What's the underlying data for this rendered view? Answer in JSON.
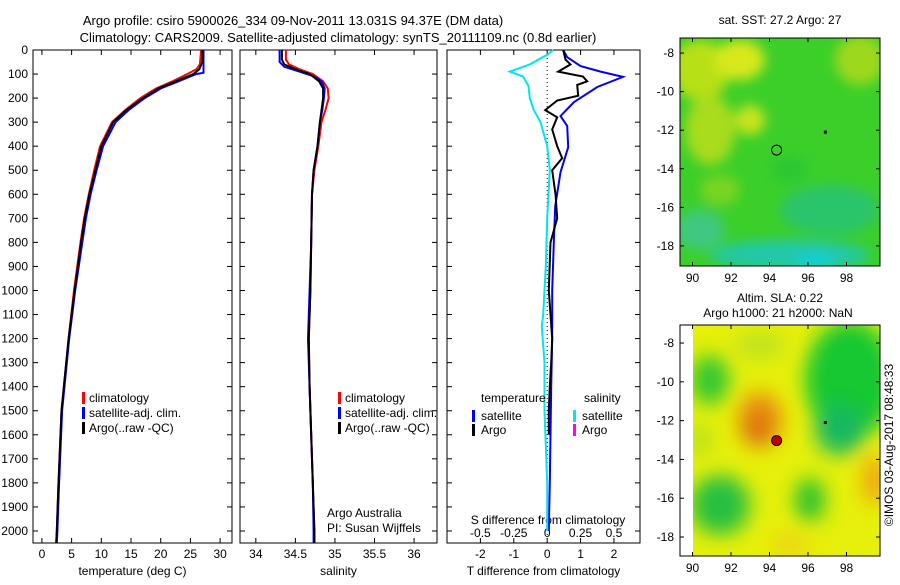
{
  "title": {
    "line1": "Argo profile: csiro 5900026_334 09-Nov-2011 13.031S 94.37E (DM data)",
    "line2": "Climatology: CARS2009. Satellite-adjusted climatology: synTS_20111109.nc (0.8d earlier)"
  },
  "colors": {
    "climatology": "#ff0000",
    "satellite": "#0000ff",
    "argo": "#000000",
    "sat_salinity": "#00e5ee",
    "argo_salinity": "#ff00ff"
  },
  "chart_data": [
    {
      "type": "line",
      "name": "temperature-profile",
      "xlabel": "temperature (deg C)",
      "ylabel": "",
      "xlim": [
        -1.5,
        32
      ],
      "ylim": [
        2050,
        0
      ],
      "xticks": [
        0,
        5,
        10,
        15,
        20,
        25,
        30
      ],
      "yticks": [
        0,
        100,
        200,
        300,
        400,
        500,
        600,
        700,
        800,
        900,
        1000,
        1100,
        1200,
        1300,
        1400,
        1500,
        1600,
        1700,
        1800,
        1900,
        2000
      ],
      "legend": [
        "climatology",
        "satellite-adj. clim.",
        "Argo(..raw -QC)"
      ],
      "series": [
        {
          "name": "climatology",
          "color": "#ff0000",
          "depth": [
            0,
            60,
            80,
            100,
            130,
            160,
            200,
            250,
            300,
            400,
            500,
            600,
            700,
            800,
            1000,
            1200,
            1500,
            1800,
            2000,
            2050
          ],
          "values": [
            26.8,
            26.6,
            26.0,
            24.5,
            22.0,
            19.2,
            16.6,
            14.0,
            11.8,
            9.8,
            8.8,
            7.9,
            7.1,
            6.5,
            5.4,
            4.5,
            3.3,
            2.8,
            2.5,
            2.4
          ]
        },
        {
          "name": "satellite-adj. clim.",
          "color": "#0000ff",
          "depth": [
            0,
            95,
            100,
            130,
            160,
            200,
            250,
            300,
            400,
            500,
            600,
            700,
            800,
            1000,
            1200,
            1500,
            1800,
            2000,
            2050
          ],
          "values": [
            27.2,
            27.2,
            26.0,
            23.0,
            20.0,
            17.3,
            14.6,
            12.4,
            10.3,
            9.2,
            8.2,
            7.4,
            6.8,
            5.6,
            4.6,
            3.4,
            2.9,
            2.6,
            2.5
          ]
        },
        {
          "name": "Argo(..raw -QC)",
          "color": "#000000",
          "depth": [
            0,
            50,
            80,
            100,
            130,
            160,
            200,
            250,
            300,
            400,
            500,
            600,
            700,
            800,
            1000,
            1200,
            1500,
            1800,
            2000,
            2050
          ],
          "values": [
            27.0,
            27.0,
            26.5,
            25.5,
            22.5,
            19.6,
            17.0,
            14.2,
            12.0,
            10.0,
            9.0,
            8.0,
            7.2,
            6.6,
            5.5,
            4.5,
            3.3,
            2.8,
            2.5,
            2.4
          ]
        }
      ]
    },
    {
      "type": "line",
      "name": "salinity-profile",
      "xlabel": "salinity",
      "xlim": [
        33.8,
        36.29
      ],
      "ylim": [
        2050,
        0
      ],
      "xticks": [
        34,
        34.5,
        35,
        35.5,
        36
      ],
      "legend": [
        "climatology",
        "satellite-adj. clim.",
        "Argo(..raw -QC)"
      ],
      "annotation": [
        "Argo Australia",
        "PI: Susan Wijffels"
      ],
      "series": [
        {
          "name": "climatology",
          "color": "#ff0000",
          "depth": [
            0,
            40,
            60,
            80,
            100,
            130,
            160,
            200,
            250,
            300,
            400,
            500,
            600,
            800,
            1000,
            1200,
            1400,
            1600,
            1800,
            2000,
            2050
          ],
          "values": [
            34.38,
            34.38,
            34.42,
            34.55,
            34.72,
            34.85,
            34.91,
            34.92,
            34.88,
            34.83,
            34.79,
            34.74,
            34.71,
            34.7,
            34.69,
            34.67,
            34.68,
            34.7,
            34.72,
            34.74,
            34.74
          ]
        },
        {
          "name": "satellite-adj. clim.",
          "color": "#0000ff",
          "depth": [
            0,
            50,
            70,
            90,
            110,
            130,
            160,
            200,
            250,
            300,
            400,
            500,
            600,
            800,
            1000,
            1200,
            1400,
            1600,
            1800,
            2000,
            2050
          ],
          "values": [
            34.3,
            34.3,
            34.36,
            34.55,
            34.74,
            34.83,
            34.87,
            34.86,
            34.84,
            34.81,
            34.78,
            34.73,
            34.71,
            34.7,
            34.68,
            34.66,
            34.68,
            34.7,
            34.72,
            34.73,
            34.73
          ]
        },
        {
          "name": "Argo(..raw -QC)",
          "color": "#000000",
          "depth": [
            0,
            40,
            60,
            80,
            100,
            130,
            160,
            200,
            250,
            300,
            400,
            500,
            600,
            800,
            1000,
            1200,
            1400,
            1600,
            1800,
            2000,
            2050
          ],
          "values": [
            34.33,
            34.33,
            34.36,
            34.5,
            34.68,
            34.8,
            34.85,
            34.85,
            34.83,
            34.81,
            34.78,
            34.73,
            34.71,
            34.7,
            34.69,
            34.67,
            34.68,
            34.7,
            34.72,
            34.74,
            34.74
          ]
        }
      ]
    },
    {
      "type": "line",
      "name": "difference-profile",
      "xlabel": "T difference from climatology",
      "xlabel2": "S difference from climatology",
      "xlim": [
        -3,
        2.78
      ],
      "xlim_s": [
        -0.75,
        0.695
      ],
      "ylim": [
        2050,
        0
      ],
      "xticks": [
        -2,
        -1,
        0,
        1,
        2
      ],
      "xticks_s": [
        "-0.5",
        "-0.25",
        "0",
        "0.25",
        "0.5"
      ],
      "xticks_s_values": [
        -0.5,
        -0.25,
        0,
        0.25,
        0.5
      ],
      "legend": {
        "temperature_title": "temperature",
        "salinity_title": "salinity",
        "t_sat": "satellite",
        "t_argo": "Argo",
        "s_sat": "satellite",
        "s_argo": "Argo"
      },
      "series": [
        {
          "name": "T satellite",
          "color": "#0000ff",
          "unit": "T",
          "depth": [
            0,
            30,
            67,
            90,
            112,
            154,
            217,
            275,
            316,
            404,
            508,
            650,
            790,
            1000,
            1200,
            1400,
            1600,
            1800,
            2000
          ],
          "values": [
            0.48,
            0.6,
            1.0,
            1.6,
            2.27,
            1.5,
            0.8,
            0.4,
            0.6,
            0.63,
            0.4,
            0.24,
            0.2,
            0.15,
            0.15,
            0.12,
            0.1,
            0.08,
            0.05
          ]
        },
        {
          "name": "T Argo",
          "color": "#000000",
          "unit": "T",
          "depth": [
            0,
            40,
            60,
            90,
            110,
            130,
            145,
            190,
            210,
            250,
            280,
            330,
            400,
            450,
            500,
            600,
            700,
            800,
            1000,
            1200,
            1300,
            1400,
            1500,
            1600
          ],
          "values": [
            0.48,
            0.55,
            0.7,
            0.33,
            1.07,
            1.2,
            0.9,
            0.93,
            0.3,
            -0.06,
            0.3,
            0.15,
            0.3,
            0.45,
            0.15,
            0.25,
            0.3,
            0.1,
            0.05,
            0.15,
            0.12,
            0.08,
            0.05,
            0.05
          ]
        },
        {
          "name": "S satellite",
          "color": "#00e5ee",
          "unit": "S",
          "depth": [
            0,
            20,
            60,
            90,
            110,
            150,
            200,
            250,
            300,
            400,
            500,
            700,
            900,
            1100,
            1150,
            1300,
            1500,
            1800,
            2000
          ],
          "values": [
            0.045,
            0.0,
            -0.13,
            -0.28,
            -0.18,
            -0.14,
            -0.13,
            -0.1,
            -0.05,
            0.0,
            0.02,
            0.0,
            -0.01,
            -0.03,
            -0.04,
            -0.02,
            -0.02,
            0.0,
            0.0
          ]
        }
      ]
    }
  ],
  "maps": [
    {
      "name": "sst-map",
      "title1": "sat. SST: 27.2 Argo: 27",
      "title2": "",
      "lon_ticks": [
        90,
        92,
        94,
        96,
        98
      ],
      "lat_ticks": [
        -8,
        -10,
        -12,
        -14,
        -16,
        -18
      ],
      "lon_range": [
        89.35,
        99.74
      ],
      "lat_range": [
        -7.22,
        -19.04
      ],
      "argo_position": [
        94.37,
        -13.03
      ],
      "argo_marker_color": "none",
      "dot_position": [
        96.9,
        -12.1
      ]
    },
    {
      "name": "sla-map",
      "title1": "Altim. SLA: 0.22",
      "title2": "Argo h1000: 21 h2000: NaN",
      "lon_ticks": [
        90,
        92,
        94,
        96,
        98
      ],
      "lat_ticks": [
        -8,
        -10,
        -12,
        -14,
        -16,
        -18
      ],
      "lon_range": [
        89.35,
        99.74
      ],
      "lat_range": [
        -7.07,
        -18.98
      ],
      "argo_position": [
        94.37,
        -13.03
      ],
      "argo_marker_color": "#c00000",
      "dot_position": [
        96.9,
        -12.1
      ]
    }
  ],
  "copyright": "©IMOS 03-Aug-2017 08:48:33"
}
